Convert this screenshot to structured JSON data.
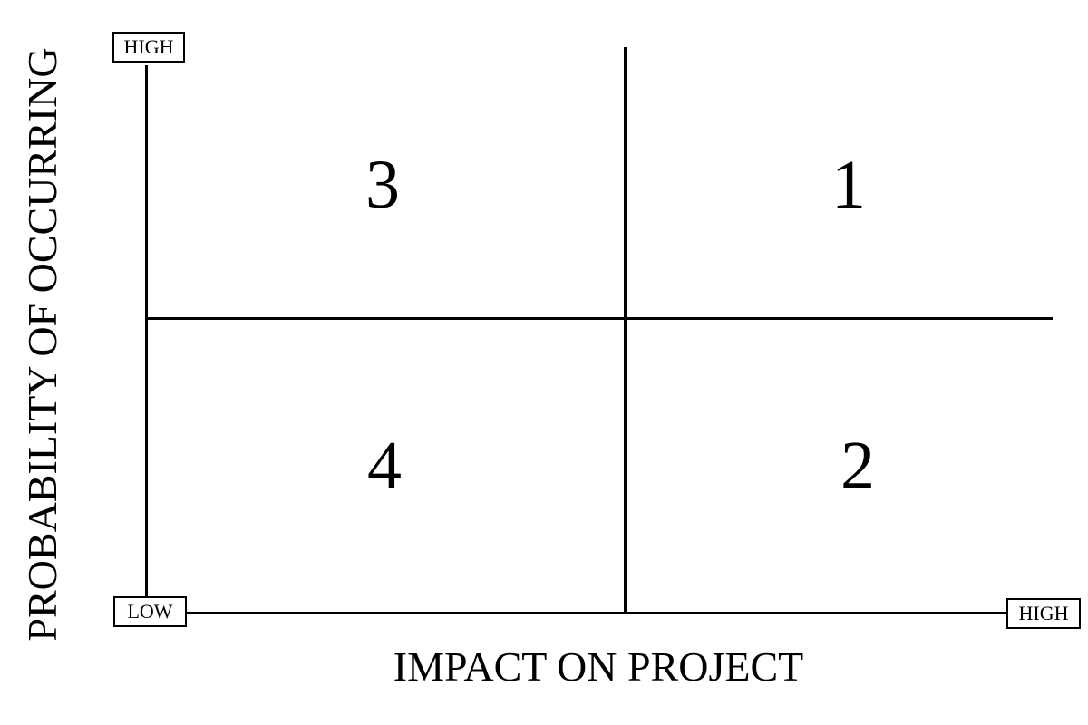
{
  "diagram": {
    "y_axis": {
      "title": "PROBABILITY OF OCCURRING",
      "high_label": "HIGH",
      "low_label": "LOW"
    },
    "x_axis": {
      "title": "IMPACT ON PROJECT",
      "high_label": "HIGH"
    },
    "quadrants": {
      "top_left": "3",
      "top_right": "1",
      "bottom_left": "4",
      "bottom_right": "2"
    },
    "colors": {
      "line": "#000000",
      "background": "#ffffff"
    }
  }
}
